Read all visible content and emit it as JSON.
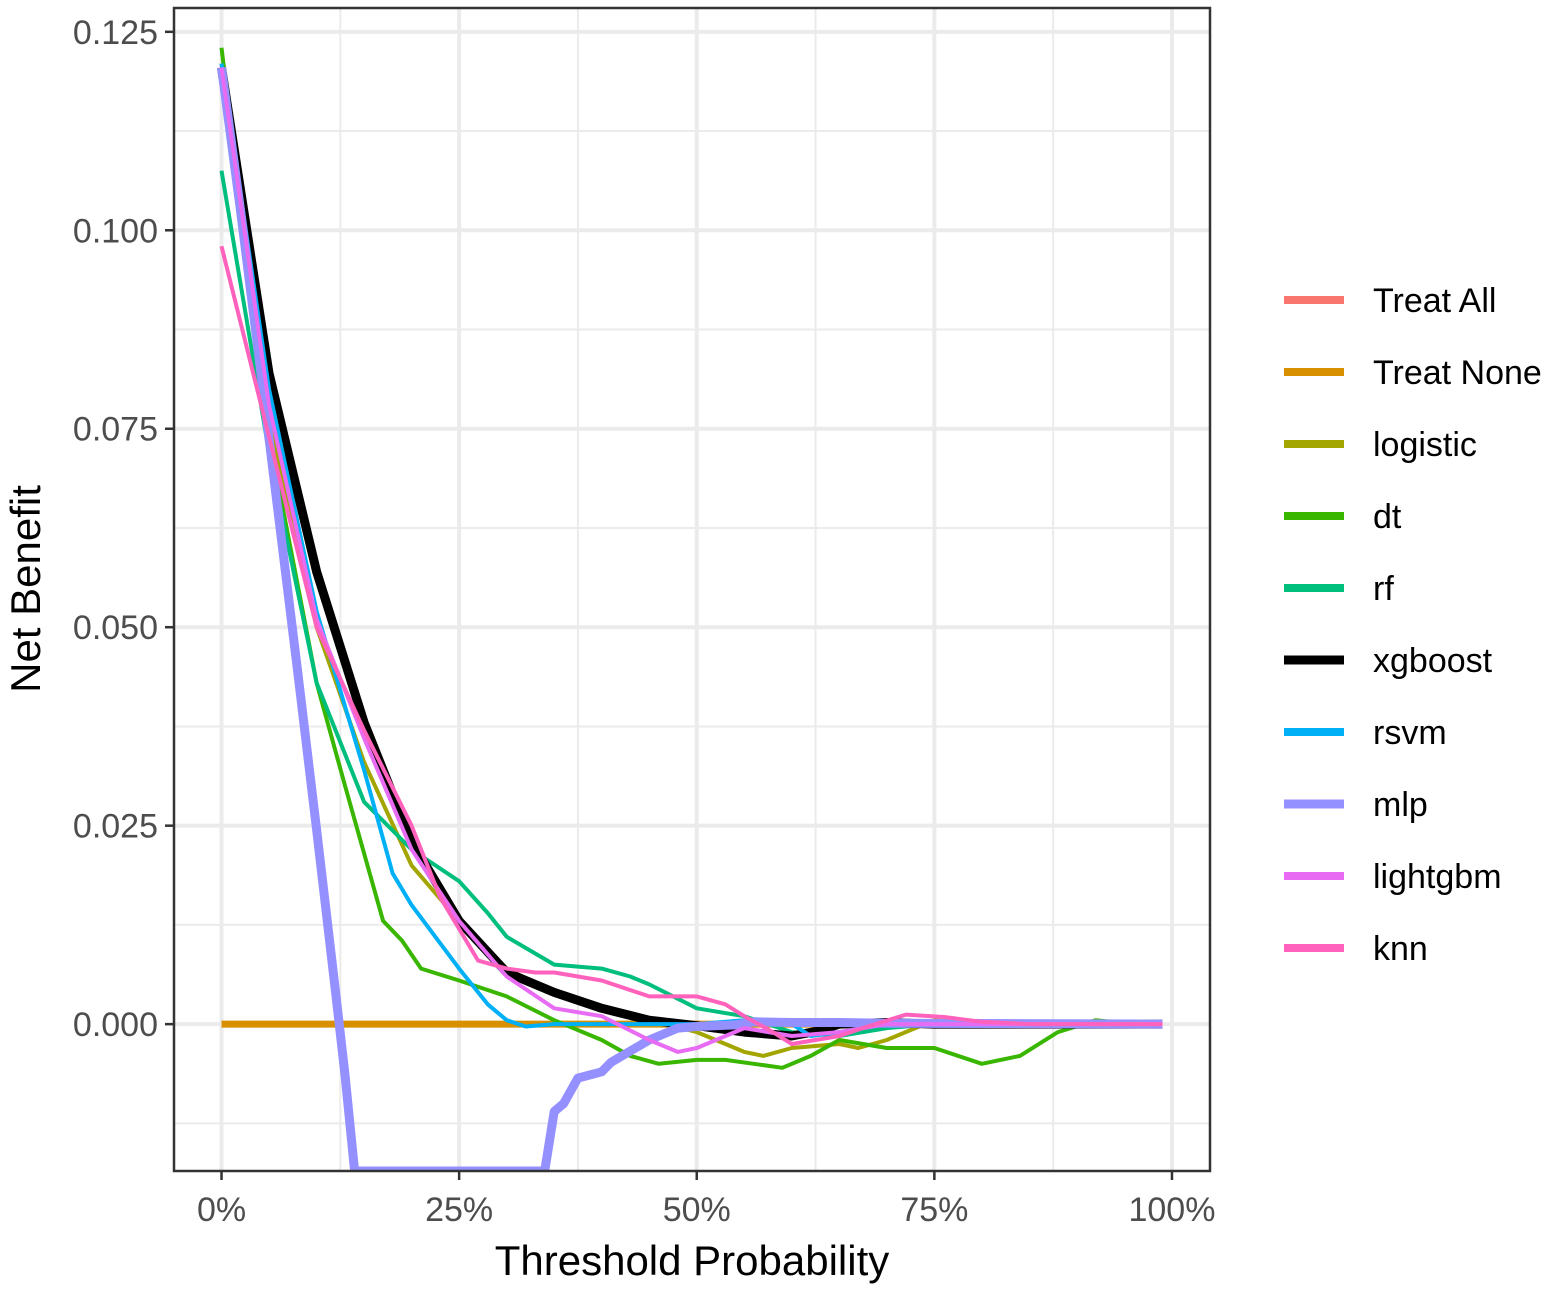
{
  "chart_data": {
    "type": "line",
    "title": "",
    "xlabel": "Threshold Probability",
    "ylabel": "Net Benefit",
    "xlim": [
      -0.05,
      1.04
    ],
    "ylim": [
      -0.0185,
      0.128
    ],
    "x_ticks": [
      0,
      0.25,
      0.5,
      0.75,
      1.0
    ],
    "x_tick_labels": [
      "0%",
      "25%",
      "50%",
      "75%",
      "100%"
    ],
    "y_ticks": [
      0,
      0.025,
      0.05,
      0.075,
      0.1,
      0.125
    ],
    "y_tick_labels": [
      "0.000",
      "0.025",
      "0.050",
      "0.075",
      "0.100",
      "0.125"
    ],
    "grid": true,
    "legend_position": "right",
    "series": [
      {
        "name": "Treat All",
        "color": "#F8766D",
        "width": 7,
        "points": [
          [
            0,
            0.1205
          ],
          [
            0.02,
            0.1025
          ],
          [
            0.04,
            0.0835
          ],
          [
            0.06,
            0.064
          ],
          [
            0.08,
            0.0445
          ],
          [
            0.1,
            0.0245
          ],
          [
            0.12,
            0.004
          ],
          [
            0.13,
            -0.0065
          ],
          [
            0.14,
            -0.0185
          ]
        ]
      },
      {
        "name": "Treat None",
        "color": "#D89000",
        "width": 7,
        "points": [
          [
            0,
            0
          ],
          [
            0.99,
            0
          ]
        ]
      },
      {
        "name": "logistic",
        "color": "#A3A500",
        "width": 4,
        "points": [
          [
            0,
            0.121
          ],
          [
            0.05,
            0.076
          ],
          [
            0.1,
            0.05
          ],
          [
            0.15,
            0.033
          ],
          [
            0.2,
            0.02
          ],
          [
            0.25,
            0.013
          ],
          [
            0.3,
            0.007
          ],
          [
            0.35,
            0.004
          ],
          [
            0.4,
            0.002
          ],
          [
            0.45,
            0.0005
          ],
          [
            0.5,
            -0.001
          ],
          [
            0.55,
            -0.0035
          ],
          [
            0.57,
            -0.004
          ],
          [
            0.6,
            -0.003
          ],
          [
            0.65,
            -0.0025
          ],
          [
            0.67,
            -0.003
          ],
          [
            0.7,
            -0.002
          ],
          [
            0.75,
            0.0005
          ],
          [
            0.8,
            0
          ],
          [
            0.99,
            0
          ]
        ]
      },
      {
        "name": "dt",
        "color": "#39B600",
        "width": 4,
        "points": [
          [
            0,
            0.123
          ],
          [
            0.05,
            0.074
          ],
          [
            0.1,
            0.043
          ],
          [
            0.13,
            0.03
          ],
          [
            0.17,
            0.013
          ],
          [
            0.19,
            0.0105
          ],
          [
            0.21,
            0.007
          ],
          [
            0.25,
            0.0055
          ],
          [
            0.3,
            0.0035
          ],
          [
            0.35,
            0.0005
          ],
          [
            0.4,
            -0.002
          ],
          [
            0.43,
            -0.004
          ],
          [
            0.46,
            -0.005
          ],
          [
            0.5,
            -0.0045
          ],
          [
            0.53,
            -0.0045
          ],
          [
            0.56,
            -0.005
          ],
          [
            0.59,
            -0.0055
          ],
          [
            0.62,
            -0.004
          ],
          [
            0.65,
            -0.002
          ],
          [
            0.7,
            -0.003
          ],
          [
            0.75,
            -0.003
          ],
          [
            0.8,
            -0.005
          ],
          [
            0.84,
            -0.004
          ],
          [
            0.88,
            -0.001
          ],
          [
            0.92,
            0.0005
          ],
          [
            0.96,
            0
          ],
          [
            0.99,
            0
          ]
        ]
      },
      {
        "name": "rf",
        "color": "#00BF7D",
        "width": 4,
        "points": [
          [
            0,
            0.1075
          ],
          [
            0.05,
            0.072
          ],
          [
            0.1,
            0.043
          ],
          [
            0.15,
            0.028
          ],
          [
            0.2,
            0.022
          ],
          [
            0.25,
            0.018
          ],
          [
            0.28,
            0.014
          ],
          [
            0.3,
            0.011
          ],
          [
            0.35,
            0.0075
          ],
          [
            0.4,
            0.007
          ],
          [
            0.43,
            0.006
          ],
          [
            0.45,
            0.005
          ],
          [
            0.5,
            0.002
          ],
          [
            0.55,
            0.001
          ],
          [
            0.6,
            -0.001
          ],
          [
            0.65,
            -0.0015
          ],
          [
            0.7,
            -0.0005
          ],
          [
            0.75,
            0
          ],
          [
            0.99,
            0
          ]
        ]
      },
      {
        "name": "xgboost",
        "color": "#000000",
        "width": 9,
        "points": [
          [
            0,
            0.1205
          ],
          [
            0.05,
            0.082
          ],
          [
            0.1,
            0.057
          ],
          [
            0.15,
            0.038
          ],
          [
            0.2,
            0.023
          ],
          [
            0.25,
            0.013
          ],
          [
            0.3,
            0.0065
          ],
          [
            0.35,
            0.004
          ],
          [
            0.4,
            0.002
          ],
          [
            0.45,
            0.0005
          ],
          [
            0.5,
            -0.0002
          ],
          [
            0.55,
            -0.001
          ],
          [
            0.6,
            -0.0015
          ],
          [
            0.63,
            -0.0008
          ],
          [
            0.65,
            0
          ],
          [
            0.7,
            0.0002
          ],
          [
            0.75,
            0
          ],
          [
            0.99,
            0
          ]
        ]
      },
      {
        "name": "rsvm",
        "color": "#00B0F6",
        "width": 4,
        "points": [
          [
            0,
            0.121
          ],
          [
            0.05,
            0.08
          ],
          [
            0.1,
            0.052
          ],
          [
            0.15,
            0.032
          ],
          [
            0.18,
            0.019
          ],
          [
            0.2,
            0.015
          ],
          [
            0.25,
            0.007
          ],
          [
            0.28,
            0.0025
          ],
          [
            0.3,
            0.0005
          ],
          [
            0.32,
            -0.0003
          ],
          [
            0.35,
            0
          ],
          [
            0.4,
            0
          ],
          [
            0.45,
            0
          ],
          [
            0.5,
            0
          ],
          [
            0.55,
            0.0005
          ],
          [
            0.6,
            0
          ],
          [
            0.62,
            -0.0015
          ],
          [
            0.65,
            -0.001
          ],
          [
            0.7,
            0
          ],
          [
            0.99,
            0
          ]
        ]
      },
      {
        "name": "mlp",
        "color": "#9590FF",
        "width": 9,
        "points": [
          [
            0,
            0.1205
          ],
          [
            0.02,
            0.1025
          ],
          [
            0.04,
            0.0835
          ],
          [
            0.06,
            0.064
          ],
          [
            0.08,
            0.0445
          ],
          [
            0.1,
            0.0245
          ],
          [
            0.12,
            0.004
          ],
          [
            0.13,
            -0.0065
          ],
          [
            0.14,
            -0.0185
          ],
          [
            0.34,
            -0.0185
          ],
          [
            0.35,
            -0.011
          ],
          [
            0.36,
            -0.01
          ],
          [
            0.375,
            -0.0068
          ],
          [
            0.4,
            -0.006
          ],
          [
            0.41,
            -0.0048
          ],
          [
            0.45,
            -0.002
          ],
          [
            0.48,
            -0.0005
          ],
          [
            0.5,
            -0.0003
          ],
          [
            0.54,
            -0.0001
          ],
          [
            0.56,
            0.0003
          ],
          [
            0.6,
            0.0002
          ],
          [
            0.65,
            0.0002
          ],
          [
            0.7,
            0.0001
          ],
          [
            0.99,
            0
          ]
        ]
      },
      {
        "name": "lightgbm",
        "color": "#E76BF3",
        "width": 4,
        "points": [
          [
            0,
            0.1205
          ],
          [
            0.05,
            0.078
          ],
          [
            0.1,
            0.051
          ],
          [
            0.15,
            0.036
          ],
          [
            0.2,
            0.022
          ],
          [
            0.25,
            0.013
          ],
          [
            0.3,
            0.006
          ],
          [
            0.35,
            0.002
          ],
          [
            0.4,
            0.001
          ],
          [
            0.45,
            -0.002
          ],
          [
            0.48,
            -0.0035
          ],
          [
            0.5,
            -0.003
          ],
          [
            0.55,
            -0.0005
          ],
          [
            0.6,
            -0.0015
          ],
          [
            0.65,
            -0.001
          ],
          [
            0.7,
            0
          ],
          [
            0.99,
            0
          ]
        ]
      },
      {
        "name": "knn",
        "color": "#FF62BC",
        "width": 4,
        "points": [
          [
            0,
            0.098
          ],
          [
            0.05,
            0.074
          ],
          [
            0.1,
            0.05
          ],
          [
            0.15,
            0.037
          ],
          [
            0.2,
            0.025
          ],
          [
            0.23,
            0.016
          ],
          [
            0.27,
            0.008
          ],
          [
            0.3,
            0.007
          ],
          [
            0.33,
            0.0065
          ],
          [
            0.35,
            0.0065
          ],
          [
            0.4,
            0.0055
          ],
          [
            0.45,
            0.0035
          ],
          [
            0.5,
            0.0035
          ],
          [
            0.53,
            0.0025
          ],
          [
            0.55,
            0.001
          ],
          [
            0.58,
            -0.001
          ],
          [
            0.6,
            -0.0025
          ],
          [
            0.65,
            -0.0015
          ],
          [
            0.68,
            -0.0003
          ],
          [
            0.72,
            0.0012
          ],
          [
            0.76,
            0.0009
          ],
          [
            0.8,
            0.0003
          ],
          [
            0.85,
            0
          ],
          [
            0.99,
            0
          ]
        ]
      }
    ]
  }
}
